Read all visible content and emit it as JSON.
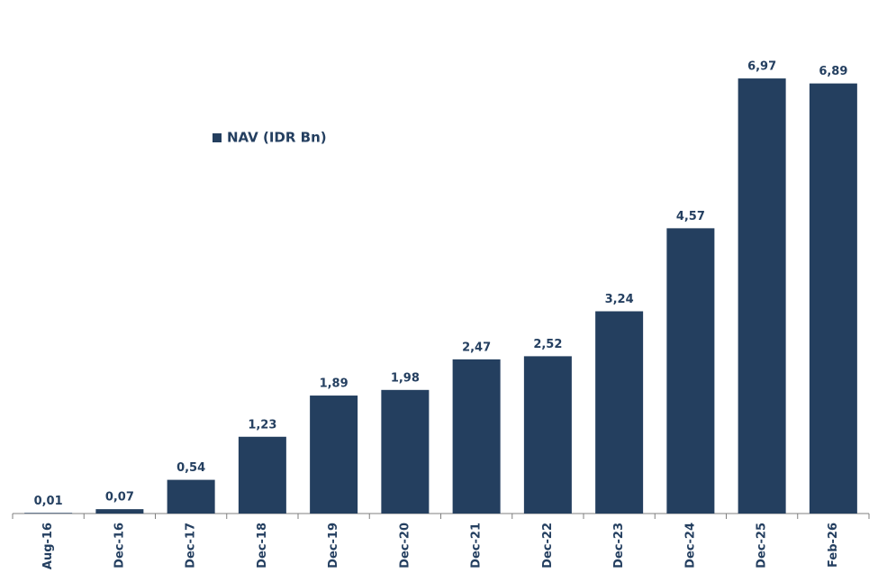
{
  "chart_data": {
    "type": "bar",
    "legend_label": "NAV (IDR Bn)",
    "categories": [
      "Aug-16",
      "Dec-16",
      "Dec-17",
      "Dec-18",
      "Dec-19",
      "Dec-20",
      "Dec-21",
      "Dec-22",
      "Dec-23",
      "Dec-24",
      "Dec-25",
      "Feb-26"
    ],
    "values": [
      0.01,
      0.07,
      0.54,
      1.23,
      1.89,
      1.98,
      2.47,
      2.52,
      3.24,
      4.57,
      6.97,
      6.89
    ],
    "value_labels": [
      "0,01",
      "0,07",
      "0,54",
      "1,23",
      "1,89",
      "1,98",
      "2,47",
      "2,52",
      "3,24",
      "4,57",
      "6,97",
      "6,89"
    ],
    "color": "#243f5f",
    "ylim": [
      0,
      7
    ]
  }
}
